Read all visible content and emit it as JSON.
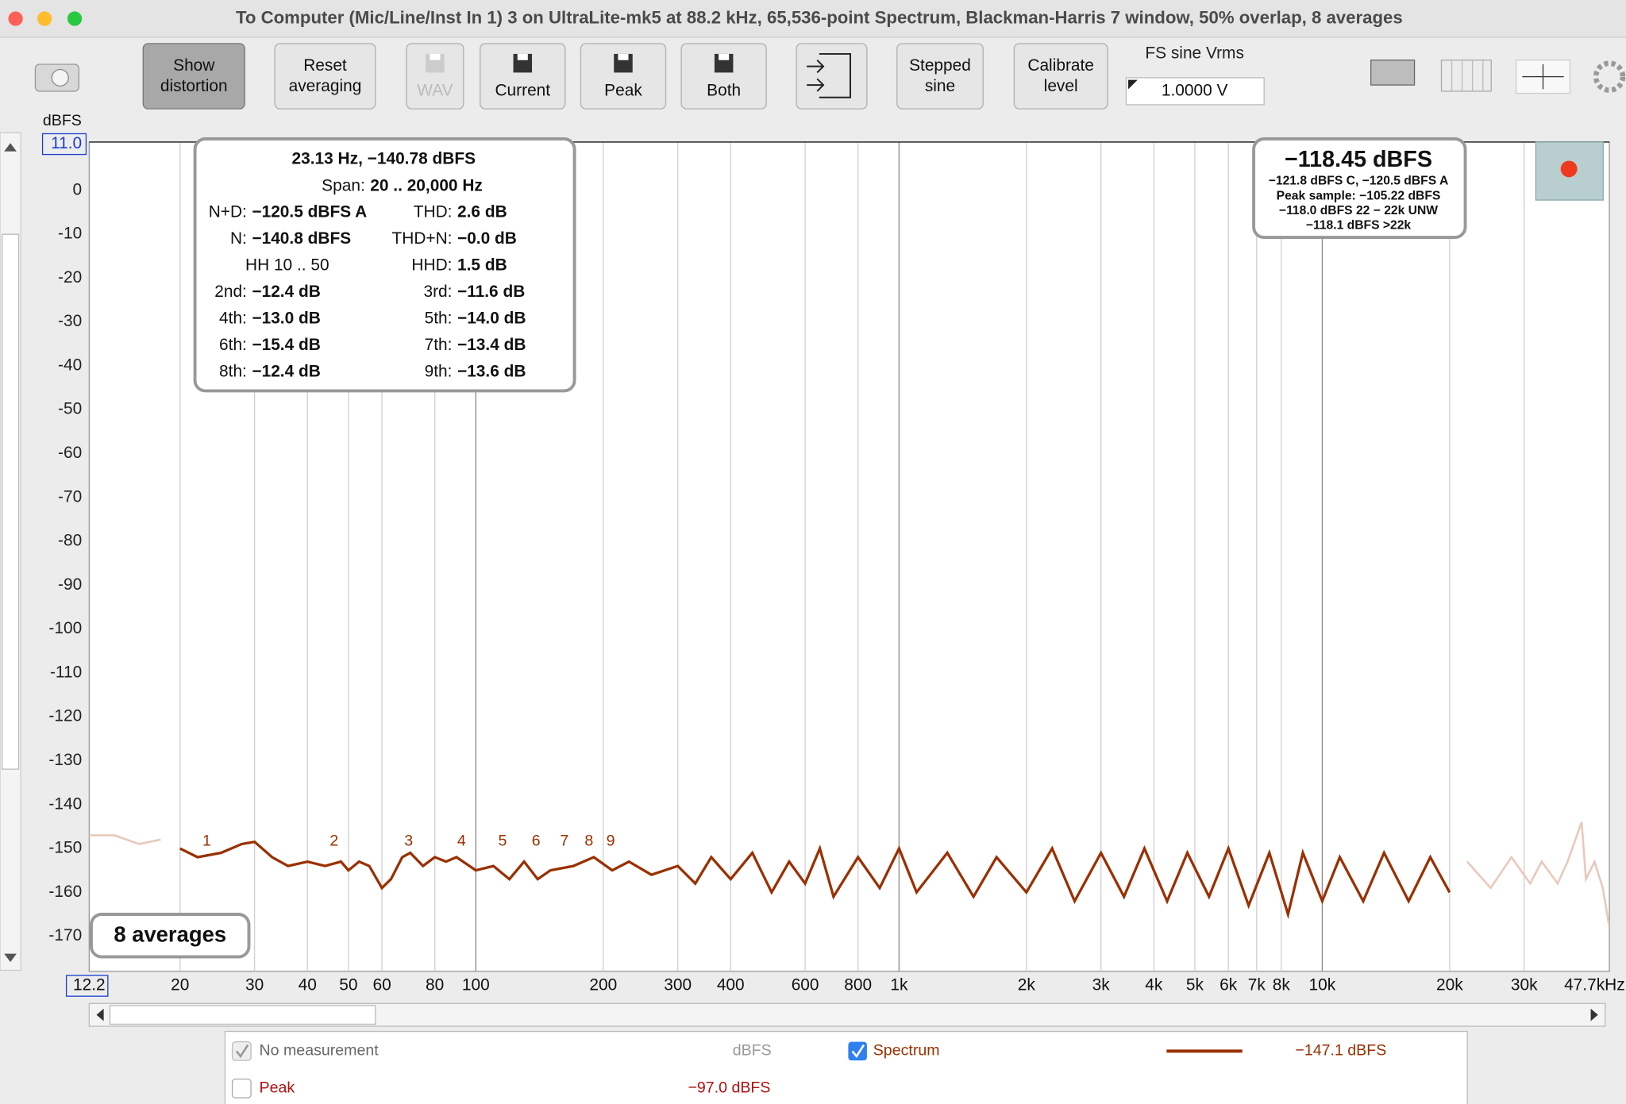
{
  "window": {
    "title": "To Computer (Mic/Line/Inst In 1) 3 on UltraLite-mk5 at 88.2 kHz, 65,536-point Spectrum, Blackman-Harris 7 window, 50% overlap, 8 averages"
  },
  "toolbar": {
    "buttons": [
      {
        "lines": [
          "Show",
          "distortion"
        ]
      },
      {
        "lines": [
          "Reset",
          "averaging"
        ]
      },
      {
        "lines": [
          "WAV"
        ]
      },
      {
        "lines": [
          "Current"
        ]
      },
      {
        "lines": [
          "Peak"
        ]
      },
      {
        "lines": [
          "Both"
        ]
      },
      {
        "lines": [
          "Stepped",
          "sine"
        ]
      },
      {
        "lines": [
          "Calibrate",
          "level"
        ]
      }
    ],
    "fs_label": "FS sine Vrms",
    "fs_value": "1.0000 V"
  },
  "chart_data": {
    "type": "line",
    "y_label": "dBFS",
    "x_log": true,
    "xlim": [
      12.2,
      47700
    ],
    "ylim": [
      -178,
      11
    ],
    "xticks": [
      12.2,
      20,
      30,
      40,
      50,
      60,
      80,
      100,
      200,
      300,
      400,
      600,
      800,
      {
        "value": 1000,
        "label": "1k"
      },
      {
        "value": 2000,
        "label": "2k"
      },
      {
        "value": 3000,
        "label": "3k"
      },
      {
        "value": 4000,
        "label": "4k"
      },
      {
        "value": 5000,
        "label": "5k"
      },
      {
        "value": 6000,
        "label": "6k"
      },
      {
        "value": 7000,
        "label": "7k"
      },
      {
        "value": 8000,
        "label": "8k"
      },
      {
        "value": 10000,
        "label": "10k"
      },
      {
        "value": 20000,
        "label": "20k"
      },
      {
        "value": 30000,
        "label": "30k"
      },
      {
        "value": 47700,
        "label": "47.7kHz"
      }
    ],
    "yticks": [
      {
        "value": 11,
        "label": "11.0"
      },
      0,
      -10,
      -20,
      -30,
      -40,
      -50,
      -60,
      -70,
      -80,
      -90,
      -100,
      -110,
      -120,
      -130,
      -140,
      -150,
      -160,
      -170
    ],
    "grid": "x",
    "x": [
      12.2,
      14,
      16,
      18,
      20,
      22,
      25,
      28,
      30,
      33,
      36,
      40,
      44,
      48,
      50,
      53,
      56,
      60,
      63,
      67,
      70,
      75,
      80,
      85,
      90,
      100,
      110,
      120,
      130,
      140,
      150,
      170,
      190,
      210,
      230,
      260,
      300,
      330,
      360,
      400,
      450,
      500,
      550,
      600,
      650,
      700,
      800,
      900,
      1000,
      1100,
      1300,
      1500,
      1700,
      2000,
      2300,
      2600,
      3000,
      3400,
      3800,
      4300,
      4800,
      5400,
      6000,
      6700,
      7500,
      8300,
      9000,
      10000,
      11000,
      12500,
      14000,
      16000,
      18000,
      20000,
      22000,
      25000,
      28000,
      31000,
      33000,
      36000,
      38000,
      41000,
      42000,
      44000,
      46000,
      47700
    ],
    "series": [
      {
        "name": "Spectrum",
        "color": "#9a3000",
        "values": [
          -147,
          -147,
          -149,
          -148,
          -150,
          -152,
          -151,
          -149,
          -148.5,
          -152,
          -154,
          -153,
          -154,
          -153,
          -155,
          -153,
          -154,
          -159,
          -157,
          -152,
          -151,
          -154,
          -152,
          -153,
          -152,
          -155,
          -154,
          -157,
          -153,
          -157,
          -155,
          -154,
          -152,
          -155,
          -153,
          -156,
          -154,
          -158,
          -152,
          -157,
          -151,
          -160,
          -153,
          -158,
          -150,
          -161,
          -152,
          -159,
          -150,
          -160,
          -151,
          -161,
          -152,
          -160,
          -150,
          -162,
          -151,
          -161,
          -150,
          -162,
          -151,
          -161,
          -150,
          -163,
          -151,
          -165,
          -151,
          -162,
          -152,
          -162,
          -151,
          -162,
          -152,
          -160,
          -153,
          -159,
          -152,
          -158,
          -153,
          -158,
          -153,
          -144,
          -157,
          -153,
          -159,
          -168
        ]
      }
    ],
    "span": [
      20,
      20000
    ],
    "out_of_span_color": "#e9c9bc",
    "harmonics": {
      "labels": [
        "1",
        "2",
        "3",
        "4",
        "5",
        "6",
        "7",
        "8",
        "9"
      ],
      "x": [
        23.13,
        46.26,
        69.39,
        92.52,
        115.65,
        138.78,
        161.91,
        185.04,
        208.17
      ]
    },
    "averages_label": "8 averages"
  },
  "readout": {
    "header": "23.13 Hz, −140.78 dBFS",
    "span_label": "Span:",
    "span_value": "20 .. 20,000 Hz",
    "left": [
      {
        "label": "N+D:",
        "value": "−120.5 dBFS A"
      },
      {
        "label": "N:",
        "value": "−140.8 dBFS"
      },
      {
        "label": "HH 10 .. 50"
      },
      {
        "label": "2nd:",
        "value": "−12.4 dB"
      },
      {
        "label": "4th:",
        "value": "−13.0 dB"
      },
      {
        "label": "6th:",
        "value": "−15.4 dB"
      },
      {
        "label": "8th:",
        "value": "−12.4 dB"
      }
    ],
    "right": [
      {
        "label": "THD:",
        "value": "2.6 dB"
      },
      {
        "label": "THD+N:",
        "value": "−0.0 dB"
      },
      {
        "label": "HHD:",
        "value": "1.5 dB"
      },
      {
        "label": "3rd:",
        "value": "−11.6 dB"
      },
      {
        "label": "5th:",
        "value": "−14.0 dB"
      },
      {
        "label": "7th:",
        "value": "−13.4 dB"
      },
      {
        "label": "9th:",
        "value": "−13.6 dB"
      }
    ]
  },
  "level_box": {
    "main": "−118.45 dBFS",
    "lines": [
      "−121.8 dBFS C, −120.5 dBFS A",
      "Peak sample: −105.22 dBFS",
      "−118.0 dBFS 22 − 22k UNW",
      "−118.1 dBFS >22k"
    ]
  },
  "legend": {
    "no_measurement": "No measurement",
    "no_measurement_unit": "dBFS",
    "spectrum_value": "−147.1 dBFS",
    "peak": "Peak",
    "peak_value": "−97.0 dBFS",
    "peak_color": "#b01010"
  }
}
